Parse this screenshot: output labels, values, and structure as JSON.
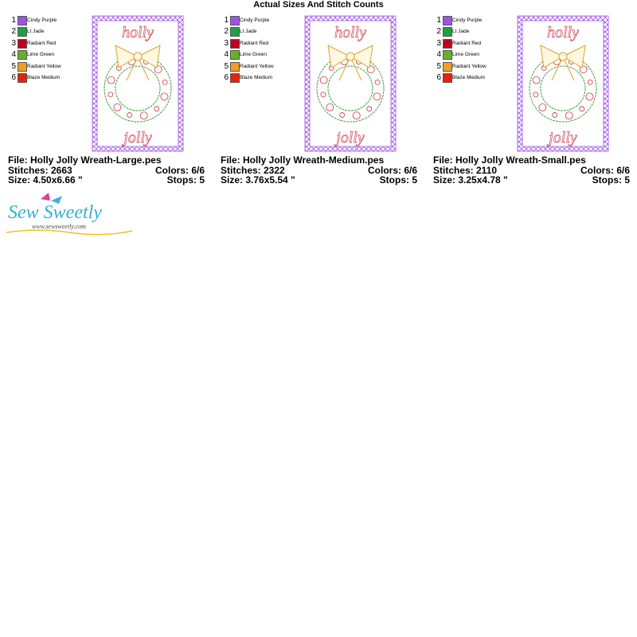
{
  "header": {
    "title": "Actual Sizes And Stitch Counts"
  },
  "designs": [
    {
      "colors": [
        {
          "number": "1",
          "name": "Cindy Purple",
          "color": "#a052e6"
        },
        {
          "number": "2",
          "name": "Lt Jade",
          "color": "#1fa046"
        },
        {
          "number": "3",
          "name": "Radiant Red",
          "color": "#c0001a"
        },
        {
          "number": "4",
          "name": "Lime Green",
          "color": "#66b02e"
        },
        {
          "number": "5",
          "name": "Radiant Yellow",
          "color": "#f0a020"
        },
        {
          "number": "6",
          "name": "Blaze Medium",
          "color": "#e8200e"
        }
      ],
      "artwork": {
        "top_text": "holly",
        "bottom_text": "jolly"
      },
      "file": "File: Holly Jolly Wreath-Large.pes",
      "stitches": "Stitches: 2663",
      "colors_count": "Colors: 6/6",
      "size": "Size: 4.50x6.66 \"",
      "stops": "Stops: 5"
    },
    {
      "colors": [
        {
          "number": "1",
          "name": "Cindy Purple",
          "color": "#a052e6"
        },
        {
          "number": "2",
          "name": "Lt Jade",
          "color": "#1fa046"
        },
        {
          "number": "3",
          "name": "Radiant Red",
          "color": "#c0001a"
        },
        {
          "number": "4",
          "name": "Lime Green",
          "color": "#66b02e"
        },
        {
          "number": "5",
          "name": "Radiant Yellow",
          "color": "#f0a020"
        },
        {
          "number": "6",
          "name": "Blaze Medium",
          "color": "#e8200e"
        }
      ],
      "artwork": {
        "top_text": "holly",
        "bottom_text": "jolly"
      },
      "file": "File: Holly Jolly Wreath-Medium.pes",
      "stitches": "Stitches: 2322",
      "colors_count": "Colors: 6/6",
      "size": "Size: 3.76x5.54 \"",
      "stops": "Stops: 5"
    },
    {
      "colors": [
        {
          "number": "1",
          "name": "Cindy Purple",
          "color": "#a052e6"
        },
        {
          "number": "2",
          "name": "Lt Jade",
          "color": "#1fa046"
        },
        {
          "number": "3",
          "name": "Radiant Red",
          "color": "#c0001a"
        },
        {
          "number": "4",
          "name": "Lime Green",
          "color": "#66b02e"
        },
        {
          "number": "5",
          "name": "Radiant Yellow",
          "color": "#f0a020"
        },
        {
          "number": "6",
          "name": "Blaze Medium",
          "color": "#e8200e"
        }
      ],
      "artwork": {
        "top_text": "holly",
        "bottom_text": "jolly"
      },
      "file": "File: Holly Jolly Wreath-Small.pes",
      "stitches": "Stitches: 2110",
      "colors_count": "Colors: 6/6",
      "size": "Size: 3.25x4.78 \"",
      "stops": "Stops: 5"
    }
  ],
  "logo": {
    "name": "Sew Sweetly",
    "url": "www.sewsweetly.com"
  }
}
